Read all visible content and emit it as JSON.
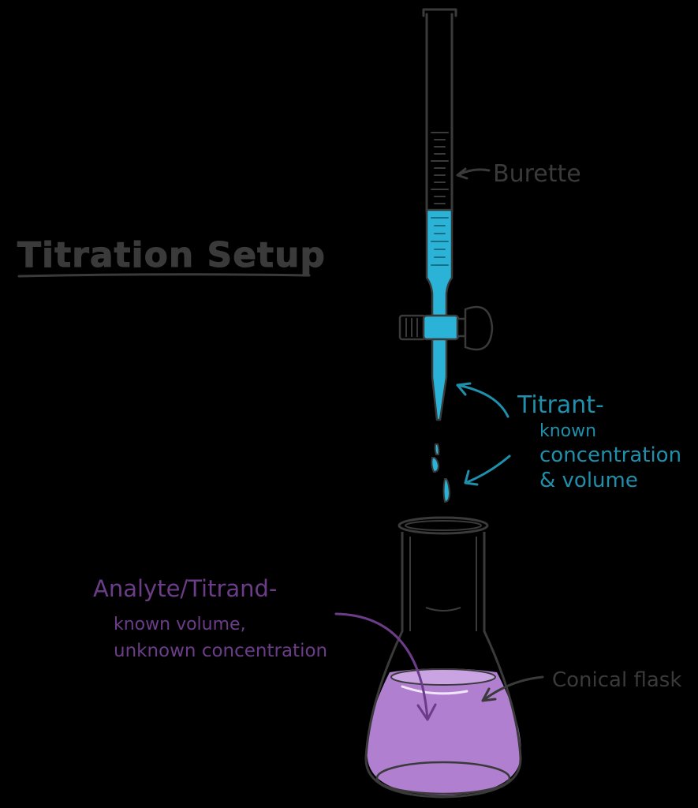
{
  "title": "Titration Setup",
  "labels": {
    "burette": "Burette",
    "titrant_title": "Titrant-",
    "titrant_line1": "known",
    "titrant_line2": "concentration",
    "titrant_line3": "& volume",
    "analyte_title": "Analyte/Titrand-",
    "analyte_line1": "known volume,",
    "analyte_line2": "unknown concentration",
    "flask": "Conical flask"
  },
  "colors": {
    "background": "#000000",
    "outline": "#3a3a3a",
    "titrant": "#2ab3d6",
    "titrant_label": "#1f8fab",
    "analyte_fill": "#b07fd0",
    "analyte_label": "#6b3d88",
    "label_dark": "#3a3a3a"
  }
}
